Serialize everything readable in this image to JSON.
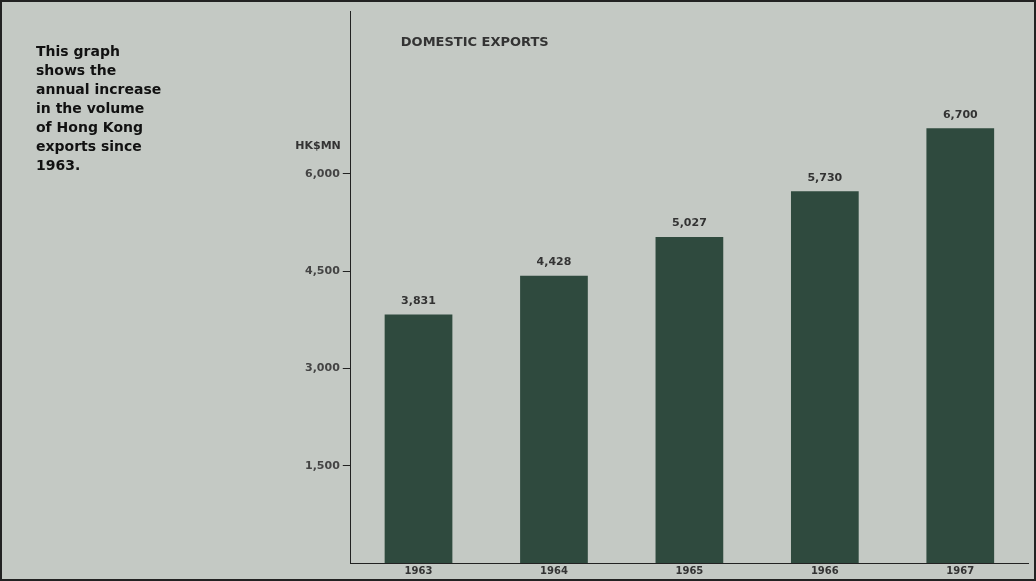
{
  "chart_data": {
    "type": "bar",
    "title": "DOMESTIC EXPORTS",
    "ylabel": "HK$MN",
    "annotations": [
      "This graph shows the annual increase in the volume of Hong Kong exports since 1963."
    ],
    "categories": [
      "1963",
      "1964",
      "1965",
      "1966",
      "1967"
    ],
    "values": [
      3831,
      4428,
      5027,
      5730,
      6700
    ],
    "value_labels": [
      "3,831",
      "4,428",
      "5,027",
      "5,730",
      "6,700"
    ],
    "color": "#2f4a3e",
    "ylim": [
      0,
      8500
    ],
    "yticks": [
      {
        "value": 1500,
        "label": "1,500"
      },
      {
        "value": 3000,
        "label": "3,000"
      },
      {
        "value": 4500,
        "label": "4,500"
      },
      {
        "value": 6000,
        "label": "6,000"
      }
    ],
    "grid": false,
    "legend": false
  }
}
